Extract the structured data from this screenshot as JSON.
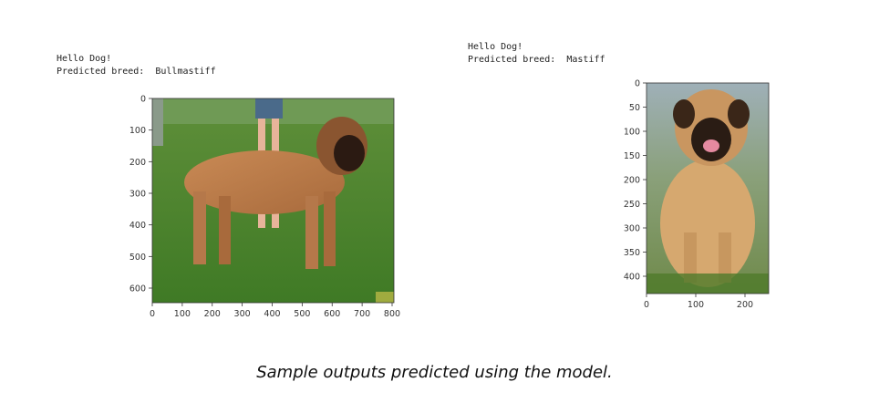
{
  "outputs": [
    {
      "greeting": "Hello Dog!",
      "prediction_label": "Predicted breed:",
      "breed": "Bullmastiff"
    },
    {
      "greeting": "Hello Dog!",
      "prediction_label": "Predicted breed:",
      "breed": "Mastiff"
    }
  ],
  "plots": [
    {
      "x_ticks": [
        "0",
        "100",
        "200",
        "300",
        "400",
        "500",
        "600",
        "700",
        "800"
      ],
      "y_ticks": [
        "0",
        "100",
        "200",
        "300",
        "400",
        "500",
        "600"
      ],
      "image_description": "photo of a large fawn dog standing on grass, person in background"
    },
    {
      "x_ticks": [
        "0",
        "100",
        "200"
      ],
      "y_ticks": [
        "0",
        "50",
        "100",
        "150",
        "200",
        "250",
        "300",
        "350",
        "400"
      ],
      "image_description": "photo of a fawn mastiff with black mask sitting outdoors"
    }
  ],
  "caption": "Sample outputs predicted using the model."
}
